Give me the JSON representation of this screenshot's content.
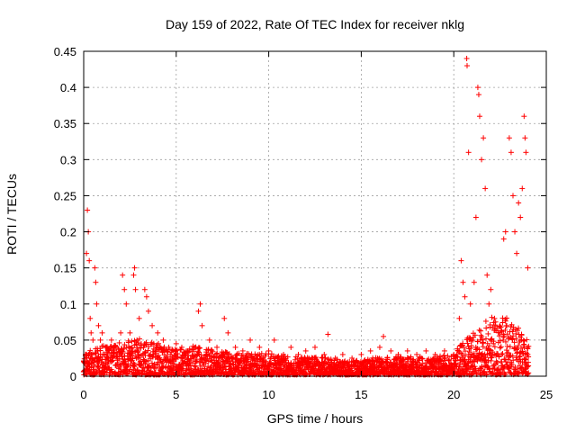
{
  "chart_data": {
    "type": "scatter",
    "title": "Day 159 of 2022, Rate Of TEC Index for receiver nklg",
    "xlabel": "GPS time / hours",
    "ylabel": "ROTI / TECUs",
    "xlim": [
      0,
      25
    ],
    "ylim": [
      0,
      0.45
    ],
    "x_ticks": [
      "0",
      "5",
      "10",
      "15",
      "20",
      "25"
    ],
    "y_ticks": [
      "0",
      "0.05",
      "0.1",
      "0.15",
      "0.2",
      "0.25",
      "0.3",
      "0.35",
      "0.4",
      "0.45"
    ],
    "grid": true,
    "marker": "plus",
    "color": "#ff0000",
    "points": [
      [
        0.05,
        0.02
      ],
      [
        0.1,
        0.03
      ],
      [
        0.15,
        0.17
      ],
      [
        0.2,
        0.23
      ],
      [
        0.25,
        0.2
      ],
      [
        0.3,
        0.16
      ],
      [
        0.35,
        0.08
      ],
      [
        0.4,
        0.06
      ],
      [
        0.5,
        0.05
      ],
      [
        0.6,
        0.15
      ],
      [
        0.65,
        0.13
      ],
      [
        0.7,
        0.1
      ],
      [
        0.8,
        0.07
      ],
      [
        0.9,
        0.05
      ],
      [
        1.0,
        0.06
      ],
      [
        1.2,
        0.04
      ],
      [
        1.5,
        0.05
      ],
      [
        1.8,
        0.04
      ],
      [
        2.0,
        0.06
      ],
      [
        2.1,
        0.14
      ],
      [
        2.2,
        0.12
      ],
      [
        2.3,
        0.1
      ],
      [
        2.5,
        0.06
      ],
      [
        2.7,
        0.14
      ],
      [
        2.75,
        0.15
      ],
      [
        2.8,
        0.12
      ],
      [
        3.0,
        0.08
      ],
      [
        3.3,
        0.12
      ],
      [
        3.4,
        0.11
      ],
      [
        3.5,
        0.09
      ],
      [
        3.7,
        0.07
      ],
      [
        4.0,
        0.06
      ],
      [
        4.3,
        0.05
      ],
      [
        4.6,
        0.04
      ],
      [
        5.0,
        0.045
      ],
      [
        5.3,
        0.04
      ],
      [
        5.6,
        0.035
      ],
      [
        6.0,
        0.04
      ],
      [
        6.2,
        0.09
      ],
      [
        6.3,
        0.1
      ],
      [
        6.4,
        0.07
      ],
      [
        6.8,
        0.05
      ],
      [
        7.2,
        0.04
      ],
      [
        7.6,
        0.08
      ],
      [
        7.8,
        0.06
      ],
      [
        8.2,
        0.04
      ],
      [
        8.6,
        0.035
      ],
      [
        9.0,
        0.05
      ],
      [
        9.5,
        0.04
      ],
      [
        10.0,
        0.035
      ],
      [
        10.3,
        0.05
      ],
      [
        10.8,
        0.03
      ],
      [
        11.2,
        0.04
      ],
      [
        11.6,
        0.03
      ],
      [
        12.0,
        0.035
      ],
      [
        12.5,
        0.04
      ],
      [
        13.0,
        0.03
      ],
      [
        13.2,
        0.058
      ],
      [
        13.6,
        0.025
      ],
      [
        14.0,
        0.03
      ],
      [
        14.5,
        0.025
      ],
      [
        15.0,
        0.03
      ],
      [
        15.5,
        0.035
      ],
      [
        16.0,
        0.04
      ],
      [
        16.2,
        0.055
      ],
      [
        16.6,
        0.035
      ],
      [
        17.0,
        0.03
      ],
      [
        17.5,
        0.035
      ],
      [
        18.0,
        0.03
      ],
      [
        18.5,
        0.035
      ],
      [
        19.0,
        0.03
      ],
      [
        19.5,
        0.035
      ],
      [
        20.0,
        0.03
      ],
      [
        20.3,
        0.08
      ],
      [
        20.4,
        0.16
      ],
      [
        20.5,
        0.13
      ],
      [
        20.6,
        0.11
      ],
      [
        20.7,
        0.44
      ],
      [
        20.72,
        0.43
      ],
      [
        20.8,
        0.31
      ],
      [
        20.9,
        0.1
      ],
      [
        21.1,
        0.13
      ],
      [
        21.2,
        0.22
      ],
      [
        21.3,
        0.4
      ],
      [
        21.35,
        0.39
      ],
      [
        21.4,
        0.36
      ],
      [
        21.5,
        0.3
      ],
      [
        21.6,
        0.33
      ],
      [
        21.7,
        0.26
      ],
      [
        21.8,
        0.14
      ],
      [
        21.9,
        0.1
      ],
      [
        22.0,
        0.12
      ],
      [
        22.2,
        0.08
      ],
      [
        22.5,
        0.06
      ],
      [
        22.7,
        0.19
      ],
      [
        22.8,
        0.2
      ],
      [
        23.0,
        0.33
      ],
      [
        23.1,
        0.31
      ],
      [
        23.2,
        0.25
      ],
      [
        23.3,
        0.2
      ],
      [
        23.4,
        0.17
      ],
      [
        23.5,
        0.24
      ],
      [
        23.6,
        0.22
      ],
      [
        23.7,
        0.26
      ],
      [
        23.8,
        0.36
      ],
      [
        23.85,
        0.33
      ],
      [
        23.9,
        0.31
      ],
      [
        24.0,
        0.15
      ],
      [
        24.0,
        0.03
      ]
    ],
    "baseline_band": [
      [
        0,
        0.03
      ],
      [
        1,
        0.04
      ],
      [
        2,
        0.045
      ],
      [
        3,
        0.05
      ],
      [
        4,
        0.045
      ],
      [
        5,
        0.035
      ],
      [
        6,
        0.04
      ],
      [
        7,
        0.035
      ],
      [
        8,
        0.03
      ],
      [
        9,
        0.03
      ],
      [
        10,
        0.03
      ],
      [
        11,
        0.025
      ],
      [
        12,
        0.025
      ],
      [
        13,
        0.025
      ],
      [
        14,
        0.02
      ],
      [
        15,
        0.02
      ],
      [
        16,
        0.025
      ],
      [
        17,
        0.025
      ],
      [
        18,
        0.025
      ],
      [
        19,
        0.025
      ],
      [
        20,
        0.03
      ],
      [
        21,
        0.06
      ],
      [
        22,
        0.08
      ],
      [
        23,
        0.08
      ],
      [
        24,
        0.05
      ]
    ]
  }
}
